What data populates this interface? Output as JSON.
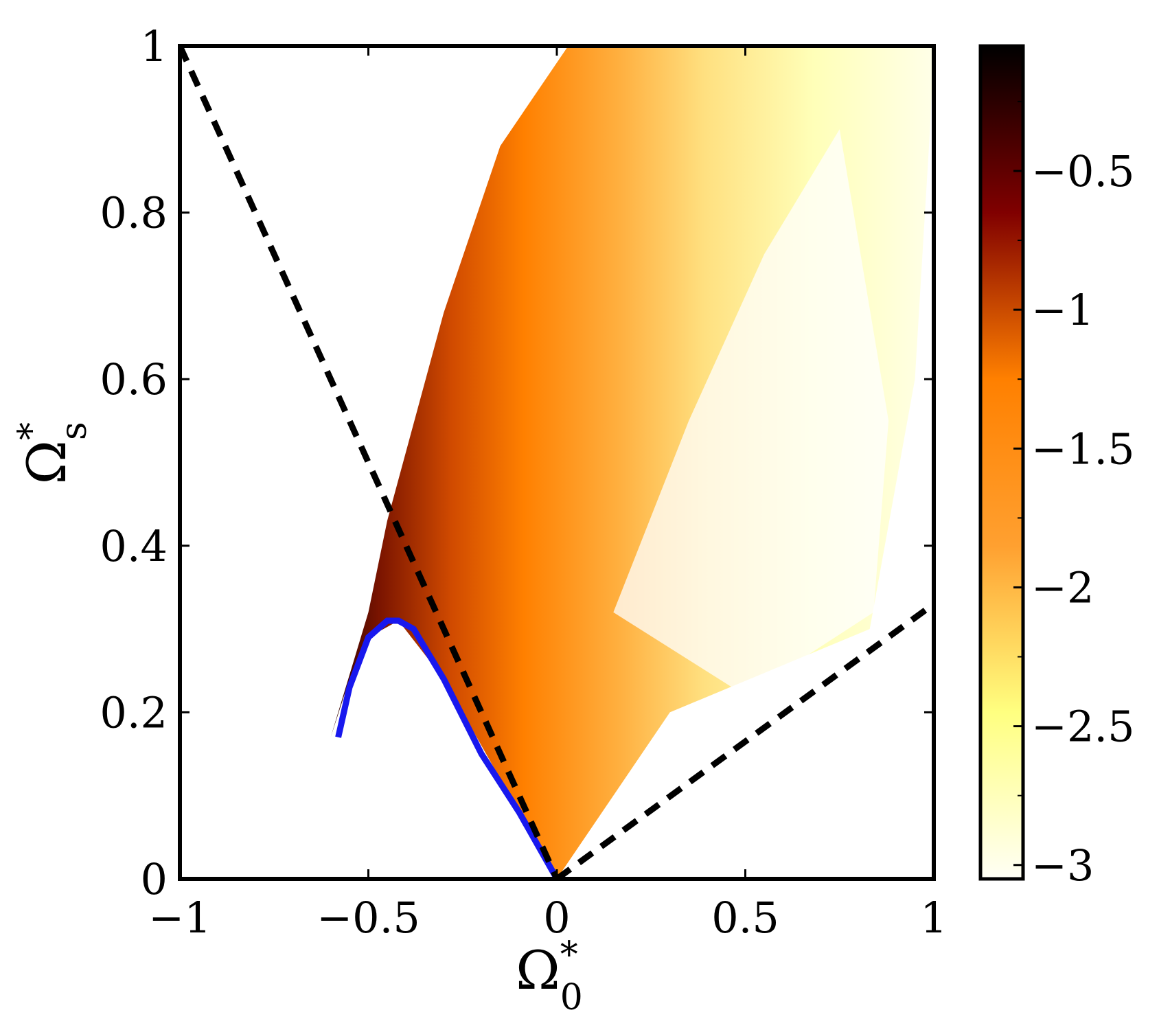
{
  "chart_data": {
    "type": "heatmap",
    "title": "",
    "xlabel": {
      "symbol": "Ω",
      "superscript": "*",
      "subscript": "0"
    },
    "ylabel": {
      "symbol": "Ω",
      "superscript": "*",
      "subscript": "s"
    },
    "xlim": [
      -1,
      1
    ],
    "ylim": [
      0,
      1
    ],
    "x_ticks": [
      -1,
      -0.5,
      0,
      0.5,
      1
    ],
    "x_tick_labels": [
      "−1",
      "−0.5",
      "0",
      "0.5",
      "1"
    ],
    "y_ticks": [
      0,
      0.2,
      0.4,
      0.6,
      0.8,
      1
    ],
    "y_tick_labels": [
      "0",
      "0.2",
      "0.4",
      "0.6",
      "0.8",
      "1"
    ],
    "grid": false,
    "colorbar": {
      "range": [
        -3.05,
        -0.05
      ],
      "ticks": [
        -3,
        -2.5,
        -2,
        -1.5,
        -1,
        -0.5
      ],
      "tick_labels": [
        "−3",
        "−2.5",
        "−2",
        "−1.5",
        "−1",
        "−0.5"
      ],
      "minor_ticks": [
        -2.75,
        -2.25,
        -1.75,
        -1.25,
        -0.75,
        -0.25
      ],
      "colormap": "afmhot_r",
      "colormap_stops": [
        "#fffff5",
        "#ffff80",
        "#ffa030",
        "#ff8000",
        "#800000",
        "#000000"
      ]
    },
    "filled_region": {
      "upper_left_boundary": [
        [
          -0.6,
          0.17
        ],
        [
          -0.5,
          0.32
        ],
        [
          -0.45,
          0.43
        ],
        [
          -0.3,
          0.68
        ],
        [
          -0.15,
          0.88
        ],
        [
          0.03,
          1.0
        ]
      ],
      "lower_boundary": [
        [
          -0.6,
          0.17
        ],
        [
          -0.55,
          0.24
        ],
        [
          -0.5,
          0.29
        ],
        [
          -0.42,
          0.31
        ],
        [
          -0.3,
          0.24
        ],
        [
          -0.15,
          0.12
        ],
        [
          0.0,
          0.0
        ]
      ],
      "right_boundary": [
        [
          0.0,
          0.0
        ],
        [
          0.3,
          0.2
        ],
        [
          0.83,
          0.3
        ],
        [
          0.95,
          0.6
        ],
        [
          0.99,
          0.9
        ],
        [
          1.0,
          1.0
        ]
      ]
    },
    "series": [
      {
        "type": "line",
        "style": "solid",
        "color": "#1818ee",
        "x": [
          -0.58,
          -0.55,
          -0.5,
          -0.45,
          -0.42,
          -0.38,
          -0.3,
          -0.2,
          -0.1,
          0.0
        ],
        "y": [
          0.17,
          0.23,
          0.29,
          0.31,
          0.31,
          0.3,
          0.24,
          0.15,
          0.08,
          0.0
        ]
      },
      {
        "type": "line",
        "style": "dashed",
        "color": "#000000",
        "x": [
          -1,
          0
        ],
        "y": [
          1,
          0
        ]
      },
      {
        "type": "line",
        "style": "dashed",
        "color": "#000000",
        "x": [
          0,
          1
        ],
        "y": [
          0,
          0.33
        ]
      }
    ]
  }
}
